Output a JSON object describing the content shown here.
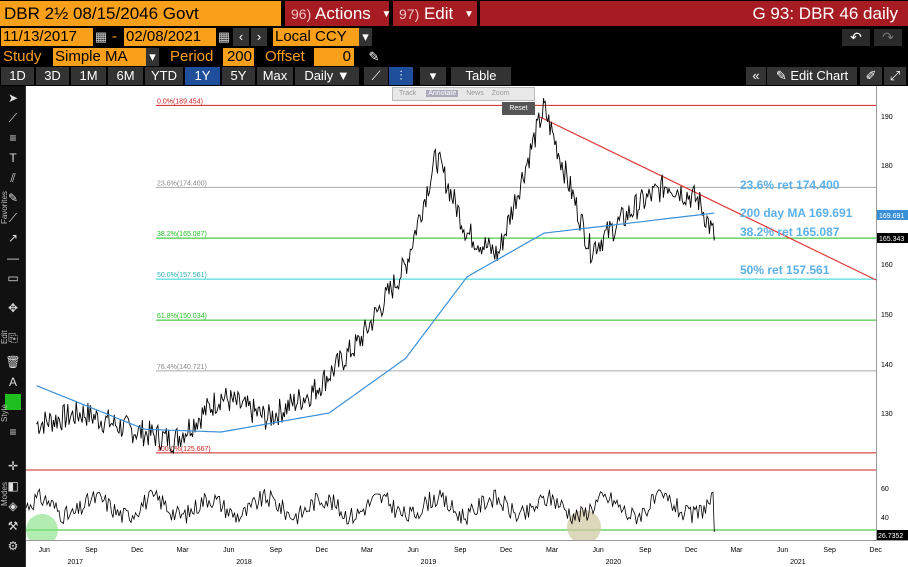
{
  "header": {
    "ticker": "DBR 2½  08/15/2046 Govt",
    "actions_num": "96)",
    "actions_label": "Actions",
    "edit_num": "97)",
    "edit_label": "Edit",
    "chart_title": "G 93: DBR 46 daily"
  },
  "dates": {
    "start": "11/13/2017",
    "dash": "-",
    "end": "02/08/2021",
    "currency": "Local CCY"
  },
  "study": {
    "label": "Study",
    "value": "Simple MA",
    "period_label": "Period",
    "period": "200",
    "offset_label": "Offset",
    "offset": "0"
  },
  "toolbar": {
    "ranges": [
      "1D",
      "3D",
      "1M",
      "6M",
      "YTD",
      "1Y",
      "5Y",
      "Max"
    ],
    "selected": "1Y",
    "frequency": "Daily ▼",
    "table": "Table",
    "edit_chart": "Edit Chart"
  },
  "chart_menu": {
    "track": "Track",
    "annotate": "Annotate",
    "news": "News",
    "zoom": "Zoom",
    "reset": "Reset"
  },
  "side_labels": {
    "favorites": "Favorites",
    "edit": "Edit",
    "style": "Style",
    "modes": "Modes"
  },
  "annotations": {
    "ret236": "23.6% ret 174.400",
    "ma200": "200 day MA 169.691",
    "ret382": "38.2% ret 165.087",
    "ret50": "50% ret 157.561"
  },
  "fib_labels": {
    "f0": "0.0%(189.454)",
    "f236": "23.6%(174.400)",
    "f382": "38.2%(165.087)",
    "f50": "50.0%(157.561)",
    "f618": "61.8%(150.034)",
    "f764": "76.4%(140.721)",
    "f100": "100.0%(125.667)"
  },
  "price_badges": {
    "ma": "169.691",
    "last": "165.343",
    "osc": "26.7352"
  },
  "y_ticks": [
    "190",
    "180",
    "170",
    "160",
    "150",
    "140",
    "130"
  ],
  "osc_ticks": [
    "60",
    "40"
  ],
  "x_months": [
    "Jun",
    "Sep",
    "Dec",
    "Mar",
    "Jun",
    "Sep",
    "Dec",
    "Mar",
    "Jun",
    "Sep",
    "Dec",
    "Mar",
    "Jun",
    "Sep",
    "Dec",
    "Mar",
    "Jun",
    "Sep",
    "Dec"
  ],
  "x_years": [
    "2017",
    "2018",
    "2019",
    "2020",
    "2021"
  ],
  "colors": {
    "orange": "#f9a01b",
    "red_bar": "#a61c22",
    "ma_line": "#3a8fd9",
    "ret_line_green": "#1fbf1f",
    "ret_line_red": "#cc2222",
    "ret_line_cyan": "#2ad4d4",
    "annotation_text": "#5bb0e8"
  },
  "chart_data": {
    "type": "line",
    "title": "G 93: DBR 46 daily",
    "series": [
      {
        "name": "DBR 2½ 08/15/2046 Govt",
        "x": [
          "2017-06",
          "2017-09",
          "2017-12",
          "2018-03",
          "2018-06",
          "2018-09",
          "2018-12",
          "2019-03",
          "2019-06",
          "2019-08",
          "2019-10",
          "2019-12",
          "2020-03",
          "2020-06",
          "2020-09",
          "2020-11",
          "2021-01",
          "2021-02"
        ],
        "y": [
          131,
          133,
          130,
          128,
          136,
          132,
          137,
          146,
          160,
          180,
          166,
          162,
          189,
          163,
          171,
          175,
          172,
          165.343
        ]
      },
      {
        "name": "200 day MA",
        "x": [
          "2017-06",
          "2018-01",
          "2018-06",
          "2019-01",
          "2019-06",
          "2019-10",
          "2020-03",
          "2020-09",
          "2021-02"
        ],
        "y": [
          138,
          130,
          129.5,
          133,
          143,
          158,
          166,
          168,
          169.691
        ]
      }
    ],
    "fibonacci": [
      {
        "level": "0.0%",
        "value": 189.454
      },
      {
        "level": "23.6%",
        "value": 174.4
      },
      {
        "level": "38.2%",
        "value": 165.087
      },
      {
        "level": "50.0%",
        "value": 157.561
      },
      {
        "level": "61.8%",
        "value": 150.034
      },
      {
        "level": "76.4%",
        "value": 140.721
      },
      {
        "level": "100.0%",
        "value": 125.667
      }
    ],
    "ylim": [
      124,
      193
    ],
    "oscillator": {
      "ticks": [
        40,
        60
      ],
      "last": 26.7352
    }
  }
}
